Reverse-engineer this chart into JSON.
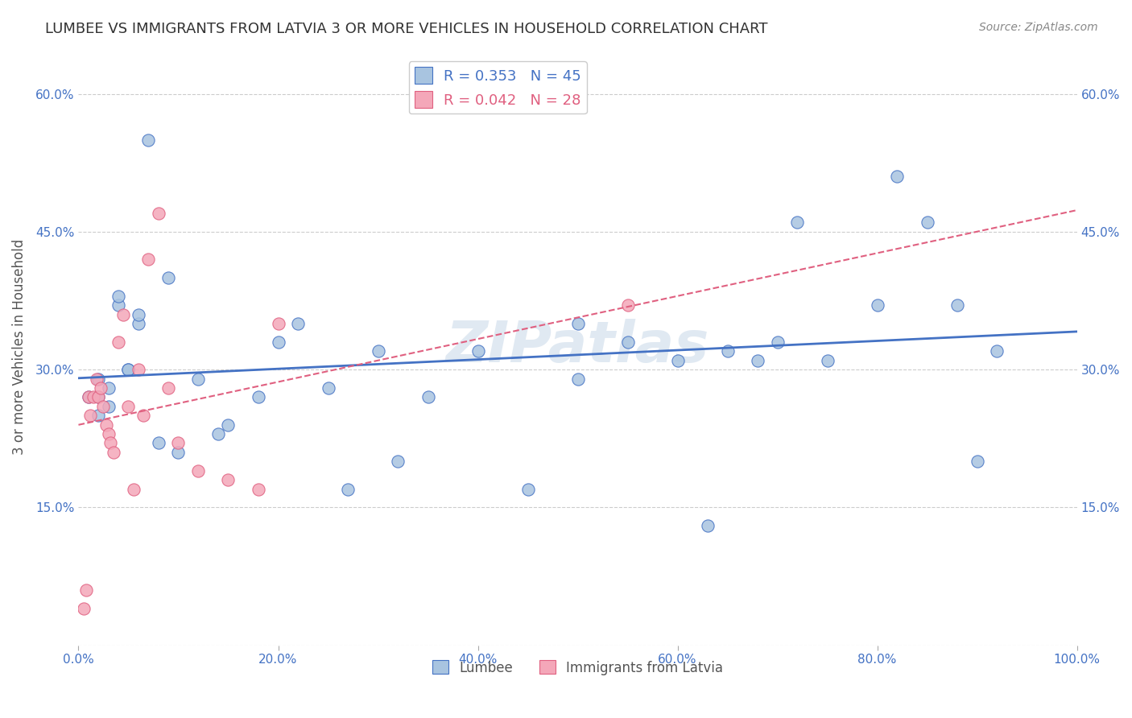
{
  "title": "LUMBEE VS IMMIGRANTS FROM LATVIA 3 OR MORE VEHICLES IN HOUSEHOLD CORRELATION CHART",
  "source_text": "Source: ZipAtlas.com",
  "ylabel": "3 or more Vehicles in Household",
  "legend_label1": "Lumbee",
  "legend_label2": "Immigrants from Latvia",
  "r1": 0.353,
  "n1": 45,
  "r2": 0.042,
  "n2": 28,
  "color1": "#a8c4e0",
  "color2": "#f4a7b9",
  "line_color1": "#4472c4",
  "line_color2": "#e06080",
  "xlim": [
    0.0,
    1.0
  ],
  "ylim": [
    0.0,
    0.65
  ],
  "xticks": [
    0.0,
    0.2,
    0.4,
    0.6,
    0.8,
    1.0
  ],
  "yticks": [
    0.0,
    0.15,
    0.3,
    0.45,
    0.6
  ],
  "xtick_labels": [
    "0.0%",
    "20.0%",
    "40.0%",
    "60.0%",
    "80.0%",
    "100.0%"
  ],
  "ytick_labels": [
    "",
    "15.0%",
    "30.0%",
    "45.0%",
    "60.0%"
  ],
  "watermark": "ZIPatlas",
  "lumbee_x": [
    0.02,
    0.04,
    0.07,
    0.02,
    0.03,
    0.05,
    0.06,
    0.02,
    0.01,
    0.03,
    0.04,
    0.05,
    0.06,
    0.08,
    0.1,
    0.09,
    0.12,
    0.14,
    0.15,
    0.18,
    0.2,
    0.22,
    0.25,
    0.27,
    0.3,
    0.32,
    0.35,
    0.4,
    0.45,
    0.5,
    0.5,
    0.55,
    0.6,
    0.63,
    0.65,
    0.68,
    0.7,
    0.72,
    0.75,
    0.8,
    0.82,
    0.85,
    0.88,
    0.9,
    0.92
  ],
  "lumbee_y": [
    0.27,
    0.37,
    0.55,
    0.29,
    0.26,
    0.3,
    0.35,
    0.25,
    0.27,
    0.28,
    0.38,
    0.3,
    0.36,
    0.22,
    0.21,
    0.4,
    0.29,
    0.23,
    0.24,
    0.27,
    0.33,
    0.35,
    0.28,
    0.17,
    0.32,
    0.2,
    0.27,
    0.32,
    0.17,
    0.29,
    0.35,
    0.33,
    0.31,
    0.13,
    0.32,
    0.31,
    0.33,
    0.46,
    0.31,
    0.37,
    0.51,
    0.46,
    0.37,
    0.2,
    0.32
  ],
  "latvia_x": [
    0.005,
    0.008,
    0.01,
    0.012,
    0.015,
    0.018,
    0.02,
    0.022,
    0.025,
    0.028,
    0.03,
    0.032,
    0.035,
    0.04,
    0.045,
    0.05,
    0.055,
    0.06,
    0.065,
    0.07,
    0.08,
    0.09,
    0.1,
    0.12,
    0.15,
    0.18,
    0.2,
    0.55
  ],
  "latvia_y": [
    0.04,
    0.06,
    0.27,
    0.25,
    0.27,
    0.29,
    0.27,
    0.28,
    0.26,
    0.24,
    0.23,
    0.22,
    0.21,
    0.33,
    0.36,
    0.26,
    0.17,
    0.3,
    0.25,
    0.42,
    0.47,
    0.28,
    0.22,
    0.19,
    0.18,
    0.17,
    0.35,
    0.37
  ]
}
